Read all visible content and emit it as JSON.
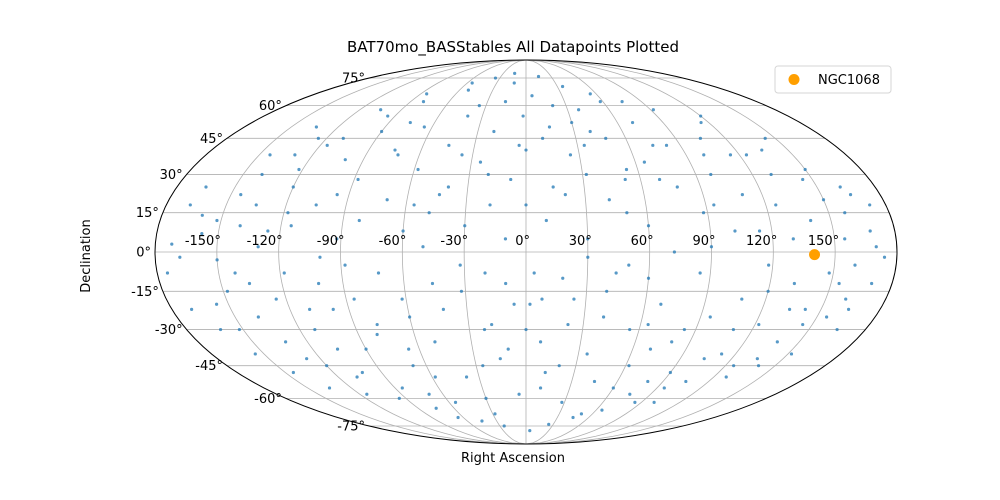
{
  "chart_data": {
    "type": "scatter",
    "projection": "mollweide",
    "title": "BAT70mo_BASStables All Datapoints Plotted",
    "xlabel": "Right Ascension",
    "ylabel": "Declination",
    "x_ticks": [
      "-150°",
      "-120°",
      "-90°",
      "-60°",
      "-30°",
      "0°",
      "30°",
      "60°",
      "90°",
      "120°",
      "150°"
    ],
    "y_ticks": [
      "75°",
      "60°",
      "45°",
      "30°",
      "15°",
      "0°",
      "-15°",
      "-30°",
      "-45°",
      "-60°",
      "-75°"
    ],
    "grid": true,
    "legend": {
      "position": "top-right",
      "entries": [
        "NGC1068"
      ]
    },
    "colors": {
      "points": "#1f77b4",
      "highlight": "#ff9f00",
      "grid": "#b0b0b0",
      "frame": "#000000"
    },
    "series": [
      {
        "role": "all-datapoints",
        "points": [
          [
            -172,
            3
          ],
          [
            -168,
            -2
          ],
          [
            -160,
            14
          ],
          [
            -158,
            7
          ],
          [
            -152,
            12
          ],
          [
            -150,
            -3
          ],
          [
            -148,
            -15
          ],
          [
            -145,
            22
          ],
          [
            -142,
            -8
          ],
          [
            -140,
            30
          ],
          [
            -138,
            -25
          ],
          [
            -135,
            18
          ],
          [
            -132,
            -35
          ],
          [
            -130,
            2
          ],
          [
            -128,
            -42
          ],
          [
            -125,
            -18
          ],
          [
            -122,
            32
          ],
          [
            -120,
            25
          ],
          [
            -118,
            -8
          ],
          [
            -115,
            10
          ],
          [
            -112,
            -30
          ],
          [
            -110,
            45
          ],
          [
            -108,
            -50
          ],
          [
            -105,
            18
          ],
          [
            -102,
            -12
          ],
          [
            -100,
            36
          ],
          [
            -98,
            -22
          ],
          [
            -95,
            55
          ],
          [
            -92,
            5
          ],
          [
            -90,
            -38
          ],
          [
            -88,
            28
          ],
          [
            -85,
            -55
          ],
          [
            -82,
            12
          ],
          [
            -80,
            62
          ],
          [
            -78,
            -28
          ],
          [
            -75,
            40
          ],
          [
            -72,
            -8
          ],
          [
            -70,
            20
          ],
          [
            -68,
            -45
          ],
          [
            -65,
            50
          ],
          [
            -62,
            -18
          ],
          [
            -60,
            8
          ],
          [
            -58,
            32
          ],
          [
            -55,
            -62
          ],
          [
            -52,
            68
          ],
          [
            -50,
            -35
          ],
          [
            -48,
            15
          ],
          [
            -45,
            42
          ],
          [
            -42,
            -22
          ],
          [
            -40,
            25
          ],
          [
            -38,
            -50
          ],
          [
            -35,
            60
          ],
          [
            -32,
            -5
          ],
          [
            -30,
            10
          ],
          [
            -28,
            -68
          ],
          [
            -25,
            35
          ],
          [
            -22,
            -30
          ],
          [
            -20,
            48
          ],
          [
            -18,
            18
          ],
          [
            -15,
            -42
          ],
          [
            -12,
            72
          ],
          [
            -10,
            -12
          ],
          [
            -8,
            28
          ],
          [
            -5,
            -58
          ],
          [
            -2,
            55
          ],
          [
            0,
            40
          ],
          [
            2,
            -20
          ],
          [
            5,
            65
          ],
          [
            8,
            -35
          ],
          [
            10,
            12
          ],
          [
            12,
            -48
          ],
          [
            15,
            50
          ],
          [
            18,
            -10
          ],
          [
            20,
            22
          ],
          [
            22,
            -28
          ],
          [
            25,
            38
          ],
          [
            28,
            -62
          ],
          [
            30,
            5
          ],
          [
            32,
            30
          ],
          [
            35,
            -40
          ],
          [
            38,
            58
          ],
          [
            40,
            -15
          ],
          [
            42,
            20
          ],
          [
            45,
            -52
          ],
          [
            48,
            45
          ],
          [
            50,
            -5
          ],
          [
            52,
            28
          ],
          [
            55,
            -30
          ],
          [
            58,
            62
          ],
          [
            60,
            10
          ],
          [
            62,
            -45
          ],
          [
            65,
            35
          ],
          [
            68,
            -20
          ],
          [
            70,
            52
          ],
          [
            72,
            0
          ],
          [
            75,
            -58
          ],
          [
            78,
            25
          ],
          [
            80,
            -35
          ],
          [
            82,
            42
          ],
          [
            85,
            -8
          ],
          [
            88,
            15
          ],
          [
            90,
            -48
          ],
          [
            92,
            58
          ],
          [
            95,
            -25
          ],
          [
            98,
            30
          ],
          [
            100,
            -62
          ],
          [
            102,
            8
          ],
          [
            105,
            45
          ],
          [
            108,
            -18
          ],
          [
            110,
            22
          ],
          [
            112,
            -40
          ],
          [
            115,
            38
          ],
          [
            118,
            -5
          ],
          [
            120,
            55
          ],
          [
            122,
            -28
          ],
          [
            125,
            18
          ],
          [
            128,
            -50
          ],
          [
            130,
            30
          ],
          [
            132,
            -12
          ],
          [
            135,
            40
          ],
          [
            138,
            -35
          ],
          [
            140,
            12
          ],
          [
            142,
            -22
          ],
          [
            145,
            28
          ],
          [
            148,
            -8
          ],
          [
            150,
            20
          ],
          [
            152,
            -40
          ],
          [
            155,
            5
          ],
          [
            158,
            15
          ],
          [
            160,
            -18
          ],
          [
            162,
            25
          ],
          [
            165,
            -30
          ],
          [
            168,
            8
          ],
          [
            170,
            -12
          ],
          [
            172,
            18
          ],
          [
            -170,
            -22
          ],
          [
            -165,
            25
          ],
          [
            -162,
            -30
          ],
          [
            -155,
            -40
          ],
          [
            -145,
            -48
          ],
          [
            -135,
            -55
          ],
          [
            -125,
            45
          ],
          [
            -115,
            -58
          ],
          [
            -105,
            58
          ],
          [
            -95,
            -60
          ],
          [
            -85,
            66
          ],
          [
            -75,
            -65
          ],
          [
            -65,
            -70
          ],
          [
            -55,
            72
          ],
          [
            -45,
            -72
          ],
          [
            -35,
            75
          ],
          [
            -25,
            -75
          ],
          [
            -15,
            78
          ],
          [
            5,
            -78
          ],
          [
            15,
            76
          ],
          [
            25,
            -74
          ],
          [
            35,
            70
          ],
          [
            45,
            -70
          ],
          [
            55,
            66
          ],
          [
            65,
            -66
          ],
          [
            75,
            62
          ],
          [
            85,
            -62
          ],
          [
            95,
            -55
          ],
          [
            105,
            -52
          ],
          [
            115,
            52
          ],
          [
            125,
            -45
          ],
          [
            135,
            -42
          ],
          [
            145,
            -28
          ],
          [
            155,
            -25
          ],
          [
            165,
            22
          ],
          [
            -20,
            -8
          ],
          [
            -10,
            5
          ],
          [
            0,
            -30
          ],
          [
            10,
            -55
          ],
          [
            20,
            60
          ],
          [
            30,
            -2
          ],
          [
            40,
            48
          ],
          [
            50,
            -68
          ],
          [
            60,
            -55
          ],
          [
            70,
            -38
          ],
          [
            -140,
            10
          ],
          [
            -130,
            38
          ],
          [
            -120,
            -45
          ],
          [
            -110,
            -22
          ],
          [
            -100,
            -2
          ],
          [
            -90,
            48
          ],
          [
            -80,
            -32
          ],
          [
            -70,
            -58
          ],
          [
            -60,
            -25
          ],
          [
            -50,
            2
          ],
          [
            -40,
            55
          ],
          [
            -30,
            -60
          ],
          [
            -20,
            30
          ],
          [
            -10,
            -38
          ],
          [
            0,
            18
          ],
          [
            10,
            45
          ],
          [
            20,
            -45
          ],
          [
            30,
            52
          ],
          [
            40,
            -25
          ],
          [
            50,
            15
          ],
          [
            60,
            -10
          ],
          [
            70,
            28
          ],
          [
            80,
            -52
          ],
          [
            90,
            2
          ],
          [
            100,
            38
          ],
          [
            110,
            -30
          ],
          [
            120,
            -15
          ],
          [
            130,
            5
          ],
          [
            140,
            -45
          ],
          [
            150,
            32
          ],
          [
            160,
            -5
          ],
          [
            170,
            2
          ],
          [
            -175,
            -8
          ],
          [
            -156,
            -20
          ],
          [
            -144,
            38
          ],
          [
            -136,
            -12
          ],
          [
            -126,
            8
          ],
          [
            -116,
            42
          ],
          [
            -106,
            -38
          ],
          [
            -96,
            22
          ],
          [
            -86,
            -18
          ],
          [
            -76,
            52
          ],
          [
            -66,
            -38
          ],
          [
            -56,
            18
          ],
          [
            -46,
            -12
          ],
          [
            -36,
            38
          ],
          [
            -26,
            -45
          ],
          [
            -16,
            62
          ],
          [
            -6,
            -20
          ],
          [
            4,
            -8
          ],
          [
            14,
            25
          ],
          [
            24,
            -18
          ],
          [
            34,
            42
          ],
          [
            44,
            -8
          ],
          [
            54,
            32
          ],
          [
            64,
            -28
          ],
          [
            74,
            42
          ],
          [
            84,
            -30
          ],
          [
            94,
            18
          ],
          [
            104,
            -42
          ],
          [
            114,
            8
          ],
          [
            124,
            38
          ],
          [
            134,
            -22
          ],
          [
            144,
            45
          ],
          [
            154,
            -12
          ],
          [
            164,
            -22
          ],
          [
            174,
            -2
          ],
          [
            -168,
            18
          ],
          [
            -152,
            -30
          ],
          [
            -134,
            50
          ],
          [
            -118,
            15
          ],
          [
            -102,
            -48
          ],
          [
            -88,
            -5
          ],
          [
            -72,
            38
          ],
          [
            -58,
            -50
          ],
          [
            -44,
            22
          ],
          [
            -32,
            -15
          ],
          [
            -18,
            -28
          ],
          [
            -4,
            42
          ],
          [
            8,
            -18
          ]
        ]
      },
      {
        "role": "highlight",
        "name": "NGC1068",
        "points": [
          [
            140,
            -1
          ]
        ]
      }
    ]
  }
}
